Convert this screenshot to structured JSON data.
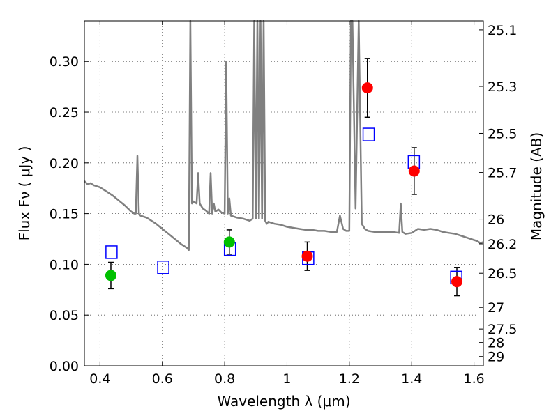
{
  "chart_data": {
    "type": "scatter",
    "title": "",
    "xlabel": "Wavelength  λ (μm)",
    "ylabel": "Flux  Fν  ( μJy )",
    "ylabel_right": "Magnitude (AB)",
    "xlim": [
      0.35,
      1.63
    ],
    "ylim": [
      0.0,
      0.34
    ],
    "grid": true,
    "x_ticks": [
      0.4,
      0.6,
      0.8,
      1.0,
      1.2,
      1.4,
      1.6
    ],
    "x_tick_labels": [
      "0.4",
      "0.6",
      "0.8",
      "1",
      "1.2",
      "1.4",
      "1.6"
    ],
    "y_ticks": [
      0.0,
      0.05,
      0.1,
      0.15,
      0.2,
      0.25,
      0.3
    ],
    "y_tick_labels": [
      "0.00",
      "0.05",
      "0.10",
      "0.15",
      "0.20",
      "0.25",
      "0.30"
    ],
    "right_ticks": [
      {
        "label": "25.1",
        "mag": 25.1
      },
      {
        "label": "25.3",
        "mag": 25.3
      },
      {
        "label": "25.5",
        "mag": 25.5
      },
      {
        "label": "25.7",
        "mag": 25.7
      },
      {
        "label": "26",
        "mag": 26.0
      },
      {
        "label": "26.2",
        "mag": 26.2
      },
      {
        "label": "26.5",
        "mag": 26.5
      },
      {
        "label": "27",
        "mag": 27.0
      },
      {
        "label": "27.5",
        "mag": 27.5
      },
      {
        "label": "28",
        "mag": 28.0
      },
      {
        "label": "29",
        "mag": 29.0
      }
    ],
    "colors": {
      "spectrum": "#808080",
      "green_points": "#00c000",
      "red_points": "#ff0000",
      "model_squares": "#0000ff",
      "grid": "#555555"
    },
    "series": [
      {
        "kind": "spectrum-line",
        "x": [
          0.35,
          0.36,
          0.37,
          0.38,
          0.39,
          0.4,
          0.42,
          0.44,
          0.46,
          0.48,
          0.5,
          0.51,
          0.515,
          0.52,
          0.525,
          0.53,
          0.55,
          0.58,
          0.6,
          0.62,
          0.64,
          0.66,
          0.68,
          0.685,
          0.69,
          0.695,
          0.7,
          0.71,
          0.715,
          0.72,
          0.73,
          0.74,
          0.75,
          0.755,
          0.76,
          0.765,
          0.77,
          0.78,
          0.79,
          0.8,
          0.805,
          0.81,
          0.815,
          0.82,
          0.84,
          0.86,
          0.88,
          0.89,
          0.895,
          0.9,
          0.905,
          0.91,
          0.915,
          0.92,
          0.925,
          0.93,
          0.935,
          0.94,
          0.96,
          0.98,
          1.0,
          1.02,
          1.04,
          1.06,
          1.08,
          1.1,
          1.12,
          1.14,
          1.16,
          1.17,
          1.18,
          1.19,
          1.2,
          1.205,
          1.21,
          1.22,
          1.23,
          1.24,
          1.25,
          1.26,
          1.28,
          1.3,
          1.32,
          1.34,
          1.36,
          1.365,
          1.37,
          1.38,
          1.4,
          1.42,
          1.44,
          1.46,
          1.48,
          1.5,
          1.52,
          1.54,
          1.56,
          1.58,
          1.6,
          1.61,
          1.62,
          1.63
        ],
        "y": [
          0.182,
          0.179,
          0.18,
          0.178,
          0.177,
          0.176,
          0.172,
          0.168,
          0.163,
          0.158,
          0.152,
          0.15,
          0.15,
          0.207,
          0.15,
          0.148,
          0.146,
          0.14,
          0.135,
          0.13,
          0.125,
          0.12,
          0.116,
          0.114,
          0.34,
          0.16,
          0.162,
          0.16,
          0.19,
          0.16,
          0.155,
          0.153,
          0.15,
          0.19,
          0.15,
          0.16,
          0.152,
          0.154,
          0.151,
          0.15,
          0.3,
          0.15,
          0.165,
          0.148,
          0.146,
          0.145,
          0.143,
          0.145,
          0.34,
          0.145,
          0.34,
          0.145,
          0.34,
          0.145,
          0.34,
          0.143,
          0.14,
          0.142,
          0.14,
          0.139,
          0.137,
          0.136,
          0.135,
          0.134,
          0.134,
          0.133,
          0.133,
          0.132,
          0.132,
          0.148,
          0.135,
          0.133,
          0.133,
          0.34,
          0.34,
          0.155,
          0.34,
          0.14,
          0.135,
          0.133,
          0.132,
          0.132,
          0.132,
          0.132,
          0.131,
          0.16,
          0.132,
          0.13,
          0.131,
          0.135,
          0.134,
          0.135,
          0.134,
          0.132,
          0.131,
          0.13,
          0.128,
          0.126,
          0.124,
          0.123,
          0.121,
          0.122
        ]
      },
      {
        "kind": "green-points",
        "x": [
          0.435,
          0.815
        ],
        "y": [
          0.089,
          0.122
        ],
        "err": [
          0.013,
          0.012
        ]
      },
      {
        "kind": "red-points",
        "x": [
          1.065,
          1.258,
          1.408,
          1.545
        ],
        "y": [
          0.108,
          0.274,
          0.192,
          0.083
        ],
        "err": [
          0.014,
          0.029,
          0.023,
          0.014
        ]
      },
      {
        "kind": "model-squares",
        "x": [
          0.437,
          0.603,
          0.817,
          1.068,
          1.262,
          1.407,
          1.543
        ],
        "y": [
          0.112,
          0.097,
          0.115,
          0.106,
          0.228,
          0.201,
          0.087
        ]
      }
    ]
  }
}
